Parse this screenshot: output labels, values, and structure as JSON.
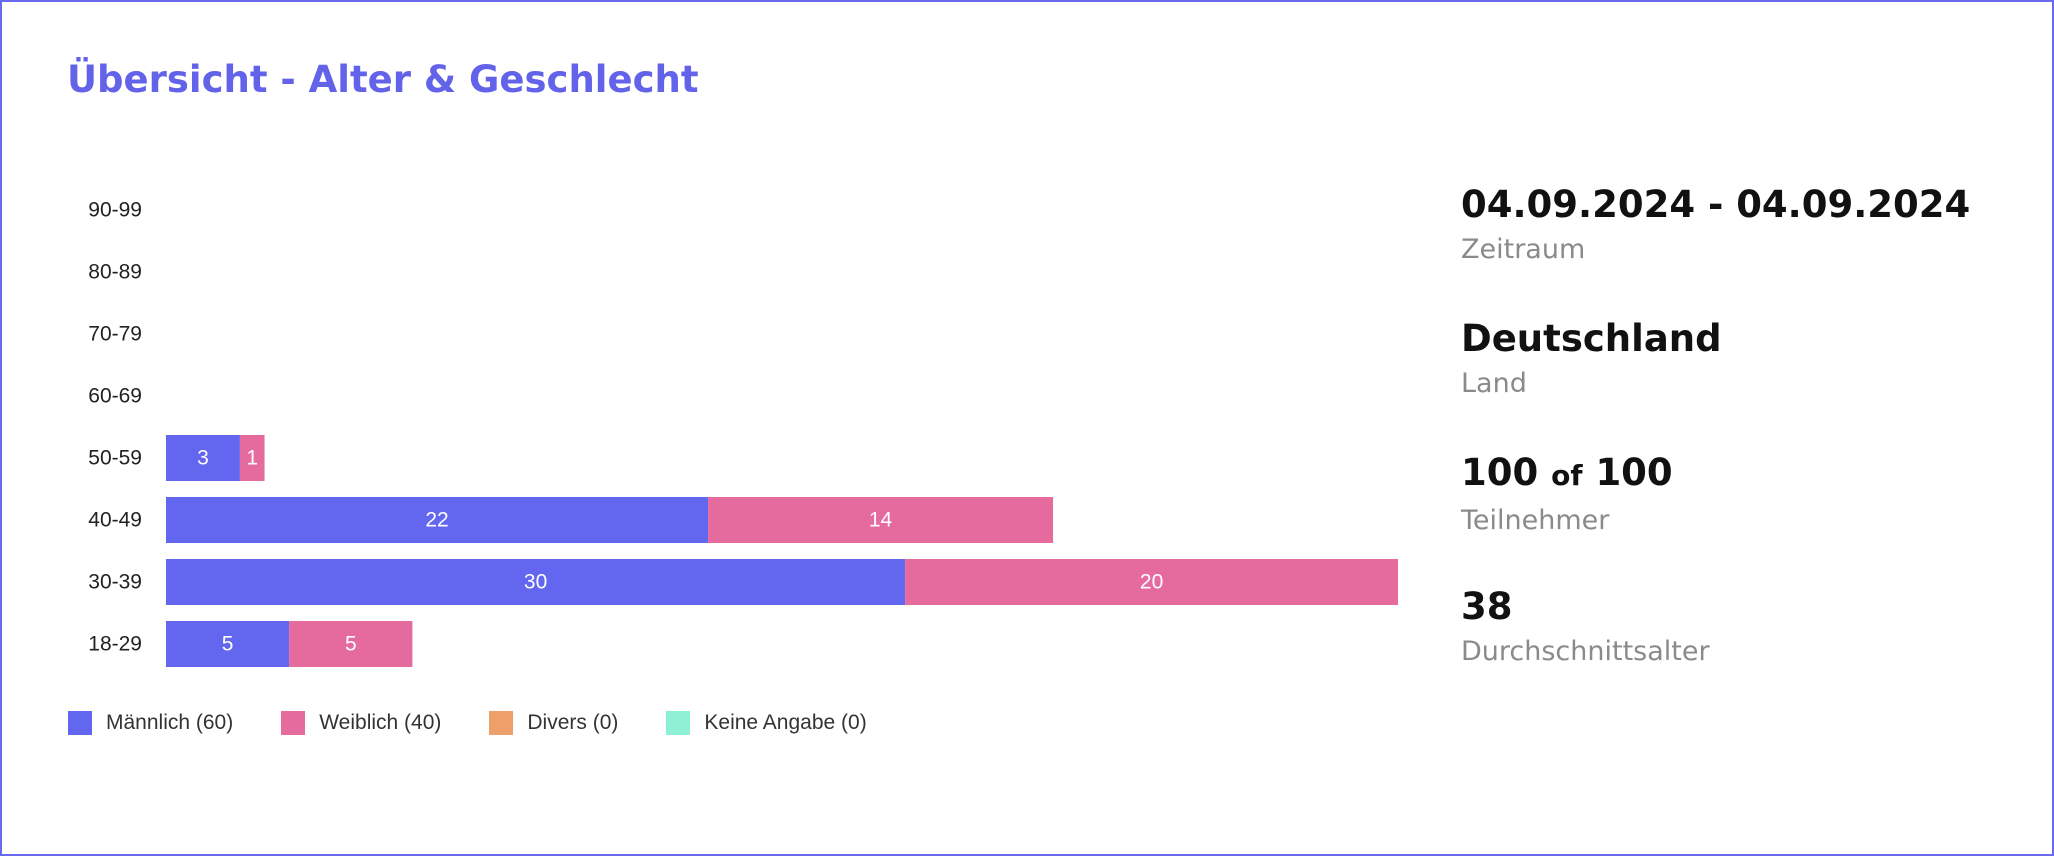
{
  "title": "Übersicht - Alter & Geschlecht",
  "chart_data": {
    "type": "bar",
    "orientation": "horizontal",
    "stacked": true,
    "categories": [
      "90-99",
      "80-89",
      "70-79",
      "60-69",
      "50-59",
      "40-49",
      "30-39",
      "18-29"
    ],
    "series": [
      {
        "name": "Männlich",
        "color": "#6366ee",
        "values": [
          0,
          0,
          0,
          0,
          3,
          22,
          30,
          5
        ]
      },
      {
        "name": "Weiblich",
        "color": "#e56b9f",
        "values": [
          0,
          0,
          0,
          0,
          1,
          14,
          20,
          5
        ]
      },
      {
        "name": "Divers",
        "color": "#eda06a",
        "values": [
          0,
          0,
          0,
          0,
          0,
          0,
          0,
          0
        ]
      },
      {
        "name": "Keine Angabe",
        "color": "#8df0d4",
        "values": [
          0,
          0,
          0,
          0,
          0,
          0,
          0,
          0
        ]
      }
    ],
    "xlim": [
      0,
      50
    ],
    "grid": false,
    "legend_position": "bottom-left"
  },
  "legend": [
    {
      "label": "Männlich (60)",
      "color": "#6366ee"
    },
    {
      "label": "Weiblich (40)",
      "color": "#e56b9f"
    },
    {
      "label": "Divers (0)",
      "color": "#eda06a"
    },
    {
      "label": "Keine Angabe (0)",
      "color": "#8df0d4"
    }
  ],
  "stats": {
    "period": {
      "value": "04.09.2024 - 04.09.2024",
      "label": "Zeitraum"
    },
    "country": {
      "value": "Deutschland",
      "label": "Land"
    },
    "participants": {
      "value": "100",
      "of": "of",
      "total": "100",
      "label": "Teilnehmer"
    },
    "average_age": {
      "value": "38",
      "label": "Durchschnittsalter"
    }
  }
}
